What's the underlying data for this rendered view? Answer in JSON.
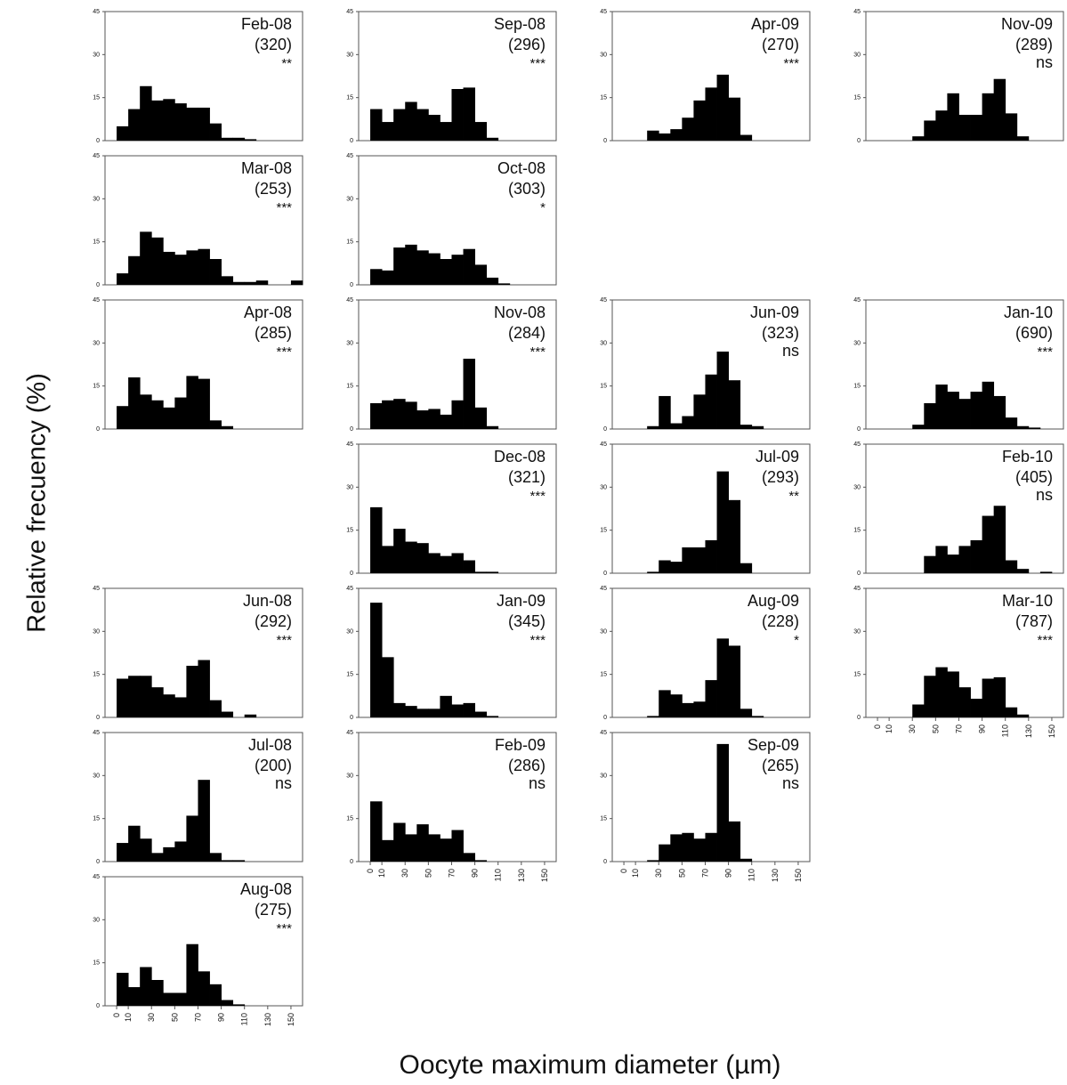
{
  "figure": {
    "ylabel": "Relative frecuency (%)",
    "xlabel": "Oocyte maximum diameter (µm)"
  },
  "axes": {
    "y_ticks": [
      0,
      15,
      30,
      45
    ],
    "x_ticks": [
      0,
      10,
      30,
      50,
      70,
      90,
      110,
      130,
      150
    ],
    "ylim": [
      0,
      45
    ],
    "xlim": [
      -10,
      160
    ],
    "bin_width": 10,
    "bin_starts": [
      0,
      10,
      20,
      30,
      40,
      50,
      60,
      70,
      80,
      90,
      100,
      110,
      120,
      130,
      140,
      150
    ]
  },
  "colors": {
    "bars": "#000000",
    "frame": "#555555",
    "text": "#111111"
  },
  "chart_data": [
    {
      "type": "bar",
      "month": "Feb-08",
      "n": "(320)",
      "sig": "**",
      "values": [
        5,
        11,
        19,
        14,
        14.5,
        13,
        11.5,
        11.5,
        6,
        1,
        1,
        0.5,
        0,
        0,
        0,
        0
      ]
    },
    {
      "type": "bar",
      "month": "Mar-08",
      "n": "(253)",
      "sig": "***",
      "values": [
        4,
        10,
        18.5,
        16.5,
        11.5,
        10.5,
        12,
        12.5,
        9,
        3,
        1,
        1,
        1.5,
        0,
        0,
        1.5
      ]
    },
    {
      "type": "bar",
      "month": "Apr-08",
      "n": "(285)",
      "sig": "***",
      "values": [
        8,
        18,
        12,
        10,
        7.5,
        11,
        18.5,
        17.5,
        3,
        1,
        0,
        0,
        0,
        0,
        0,
        0
      ]
    },
    {
      "type": "bar",
      "month": "Jun-08",
      "n": "(292)",
      "sig": "***",
      "values": [
        13.5,
        14.5,
        14.5,
        10.5,
        8,
        7,
        18,
        20,
        6,
        2,
        0,
        1,
        0,
        0,
        0,
        0
      ]
    },
    {
      "type": "bar",
      "month": "Jul-08",
      "n": "(200)",
      "sig": "ns",
      "values": [
        6.5,
        12.5,
        8,
        3,
        5,
        7,
        16,
        28.5,
        3,
        0.5,
        0.5,
        0,
        0,
        0,
        0,
        0
      ]
    },
    {
      "type": "bar",
      "month": "Aug-08",
      "n": "(275)",
      "sig": "***",
      "values": [
        11.5,
        6.5,
        13.5,
        9,
        4.5,
        4.5,
        21.5,
        12,
        7.5,
        2,
        0.5,
        0,
        0,
        0,
        0,
        0
      ]
    },
    {
      "type": "bar",
      "month": "Sep-08",
      "n": "(296)",
      "sig": "***",
      "values": [
        11,
        6.5,
        11,
        13.5,
        11,
        9,
        6.5,
        18,
        18.5,
        6.5,
        1,
        0,
        0,
        0,
        0,
        0
      ]
    },
    {
      "type": "bar",
      "month": "Oct-08",
      "n": "(303)",
      "sig": "*",
      "values": [
        5.5,
        5,
        13,
        14,
        12,
        11,
        9,
        10.5,
        12.5,
        7,
        2.5,
        0.5,
        0,
        0,
        0,
        0
      ]
    },
    {
      "type": "bar",
      "month": "Nov-08",
      "n": "(284)",
      "sig": "***",
      "values": [
        9,
        10,
        10.5,
        9.5,
        6.5,
        7,
        5,
        10,
        24.5,
        7.5,
        1,
        0,
        0,
        0,
        0,
        0
      ]
    },
    {
      "type": "bar",
      "month": "Dec-08",
      "n": "(321)",
      "sig": "***",
      "values": [
        23,
        9.5,
        15.5,
        11,
        10.5,
        7,
        6,
        7,
        4.5,
        0.5,
        0.5,
        0,
        0,
        0,
        0,
        0
      ]
    },
    {
      "type": "bar",
      "month": "Jan-09",
      "n": "(345)",
      "sig": "***",
      "values": [
        40,
        21,
        5,
        4,
        3,
        3,
        7.5,
        4.5,
        5,
        2,
        0.5,
        0,
        0,
        0,
        0,
        0
      ]
    },
    {
      "type": "bar",
      "month": "Feb-09",
      "n": "(286)",
      "sig": "ns",
      "values": [
        21,
        7.5,
        13.5,
        9.5,
        13,
        9.5,
        8,
        11,
        3,
        0.5,
        0,
        0,
        0,
        0,
        0,
        0
      ]
    },
    {
      "type": "bar",
      "month": "Apr-09",
      "n": "(270)",
      "sig": "***",
      "values": [
        0,
        0,
        3.5,
        2.5,
        4,
        8,
        14,
        18.5,
        23,
        15,
        2,
        0,
        0,
        0,
        0,
        0
      ]
    },
    {
      "type": "bar",
      "month": "Jun-09",
      "n": "(323)",
      "sig": "ns",
      "values": [
        0,
        0,
        1,
        11.5,
        2,
        4.5,
        12,
        19,
        27,
        17,
        1.5,
        1,
        0,
        0,
        0,
        0
      ]
    },
    {
      "type": "bar",
      "month": "Jul-09",
      "n": "(293)",
      "sig": "**",
      "values": [
        0,
        0,
        0.5,
        4.5,
        4,
        9,
        9,
        11.5,
        35.5,
        25.5,
        3.5,
        0,
        0,
        0,
        0,
        0
      ]
    },
    {
      "type": "bar",
      "month": "Aug-09",
      "n": "(228)",
      "sig": "*",
      "values": [
        0,
        0,
        0.5,
        9.5,
        8,
        5,
        5.5,
        13,
        27.5,
        25,
        3,
        0.5,
        0,
        0,
        0,
        0
      ]
    },
    {
      "type": "bar",
      "month": "Sep-09",
      "n": "(265)",
      "sig": "ns",
      "values": [
        0,
        0,
        0.5,
        6,
        9.5,
        10,
        8,
        10,
        41,
        14,
        1,
        0,
        0,
        0,
        0,
        0
      ]
    },
    {
      "type": "bar",
      "month": "Nov-09",
      "n": "(289)",
      "sig": "ns",
      "values": [
        0,
        0,
        0,
        1.5,
        7,
        10.5,
        16.5,
        9,
        9,
        16.5,
        21.5,
        9.5,
        1.5,
        0,
        0,
        0
      ]
    },
    {
      "type": "bar",
      "month": "Jan-10",
      "n": "(690)",
      "sig": "***",
      "values": [
        0,
        0,
        0,
        1.5,
        9,
        15.5,
        13,
        10.5,
        13,
        16.5,
        11.5,
        4,
        1,
        0.5,
        0,
        0
      ]
    },
    {
      "type": "bar",
      "month": "Feb-10",
      "n": "(405)",
      "sig": "ns",
      "values": [
        0,
        0,
        0,
        0,
        6,
        9.5,
        6.5,
        9.5,
        11.5,
        20,
        23.5,
        4.5,
        1.5,
        0,
        0.5,
        0
      ]
    },
    {
      "type": "bar",
      "month": "Mar-10",
      "n": "(787)",
      "sig": "***",
      "values": [
        0,
        0,
        0,
        4.5,
        14.5,
        17.5,
        16,
        10.5,
        6.5,
        13.5,
        14,
        3.5,
        1,
        0,
        0,
        0
      ]
    }
  ]
}
